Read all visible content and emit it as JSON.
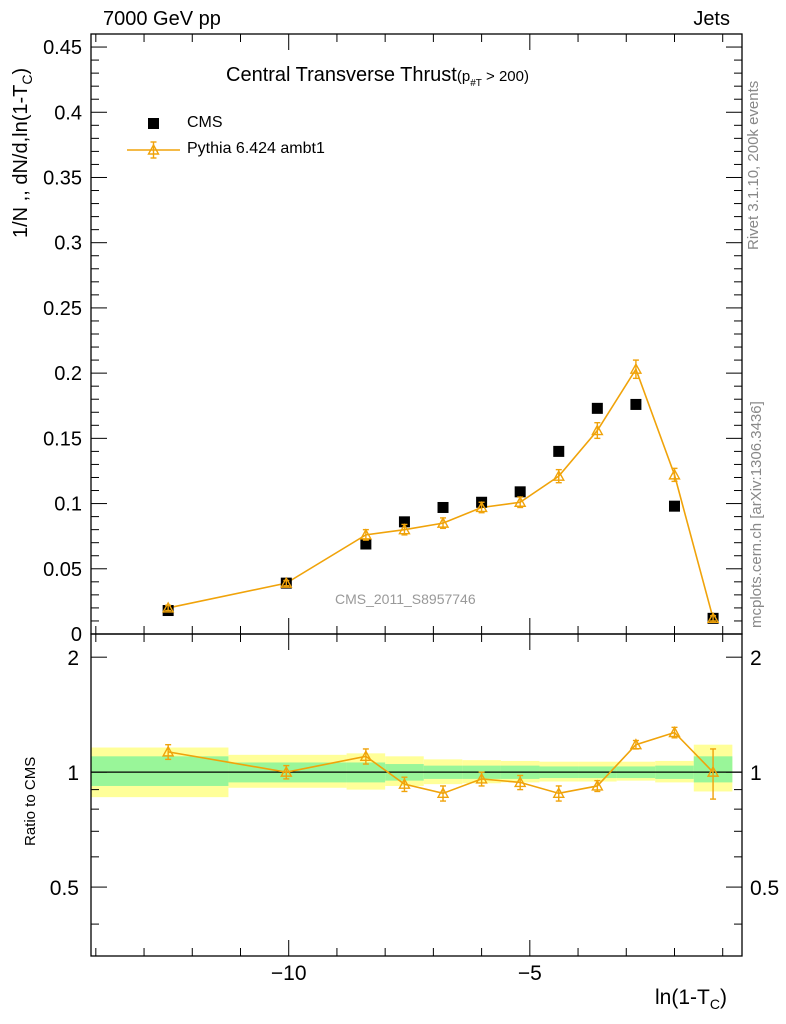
{
  "header": {
    "left": "7000 GeV pp",
    "right": "Jets"
  },
  "chart_data": {
    "type": "line",
    "title": "Central Transverse Thrust",
    "title_suffix": "(p",
    "title_sub": "#T",
    "title_tail": " > 200)",
    "ylabel": "1/N ,, dN/d,ln(1-T",
    "ylabel_sub": "C",
    "ylabel_tail": ")",
    "xlabel": "ln(1-T",
    "xlabel_sub": "C",
    "xlabel_tail": ")",
    "watermark": "CMS_2011_S8957746",
    "side_top": "Rivet 3.1.10,  200k events",
    "side_bottom": "mcplots.cern.ch [arXiv:1306.3436]",
    "ratio_ylabel": "Ratio to CMS",
    "xlim": [
      -14.1,
      -0.6
    ],
    "ylim": [
      0,
      0.46
    ],
    "ratio_ylim": [
      0.33,
      2.3
    ],
    "xticks": [
      -10,
      -5
    ],
    "xtick_labels": [
      "−10",
      "−5"
    ],
    "yticks": [
      0,
      0.05,
      0.1,
      0.15,
      0.2,
      0.25,
      0.3,
      0.35,
      0.4,
      0.45
    ],
    "ytick_labels": [
      "0",
      "0.05",
      "0.1",
      "0.15",
      "0.2",
      "0.25",
      "0.3",
      "0.35",
      "0.4",
      "0.45"
    ],
    "ratio_ticks": [
      0.5,
      1,
      2
    ],
    "ratio_tick_labels": [
      "0.5",
      "1",
      "2"
    ],
    "colors": {
      "mc": "#f0a30a",
      "green": "#99f699",
      "yellow": "#ffff99",
      "data": "#000000"
    },
    "legend": {
      "placement": "top-left",
      "entries": [
        "CMS",
        "Pythia 6.424 ambt1"
      ]
    },
    "series": [
      {
        "name": "CMS",
        "marker": "square",
        "x": [
          -12.5,
          -10.05,
          -8.4,
          -7.6,
          -6.8,
          -6.0,
          -5.2,
          -4.4,
          -3.6,
          -2.8,
          -2.0,
          -1.2
        ],
        "y": [
          0.018,
          0.039,
          0.069,
          0.086,
          0.097,
          0.101,
          0.109,
          0.14,
          0.173,
          0.176,
          0.098,
          0.012
        ]
      },
      {
        "name": "Pythia 6.424 ambt1",
        "marker": "triangle",
        "x": [
          -12.5,
          -10.05,
          -8.4,
          -7.6,
          -6.8,
          -6.0,
          -5.2,
          -4.4,
          -3.6,
          -2.8,
          -2.0,
          -1.2
        ],
        "y": [
          0.02,
          0.039,
          0.076,
          0.08,
          0.085,
          0.097,
          0.101,
          0.121,
          0.156,
          0.203,
          0.122,
          0.012
        ],
        "yerr": [
          0.002,
          0.002,
          0.004,
          0.004,
          0.004,
          0.004,
          0.004,
          0.005,
          0.006,
          0.007,
          0.005,
          0.002
        ]
      }
    ],
    "ratio": {
      "x": [
        -12.5,
        -10.05,
        -8.4,
        -7.6,
        -6.8,
        -6.0,
        -5.2,
        -4.4,
        -3.6,
        -2.8,
        -2.0,
        -1.2
      ],
      "y": [
        1.13,
        1.0,
        1.1,
        0.93,
        0.88,
        0.96,
        0.94,
        0.88,
        0.92,
        1.18,
        1.27,
        1.0
      ],
      "yerr": [
        0.05,
        0.04,
        0.05,
        0.04,
        0.04,
        0.04,
        0.04,
        0.04,
        0.03,
        0.03,
        0.04,
        0.15
      ]
    },
    "bands": [
      {
        "x0": -14.1,
        "x1": -11.25,
        "g": [
          0.92,
          1.1
        ],
        "yl": [
          0.86,
          1.16
        ]
      },
      {
        "x0": -11.25,
        "x1": -8.8,
        "g": [
          0.94,
          1.06
        ],
        "yl": [
          0.91,
          1.11
        ]
      },
      {
        "x0": -8.8,
        "x1": -8.0,
        "g": [
          0.94,
          1.06
        ],
        "yl": [
          0.9,
          1.12
        ]
      },
      {
        "x0": -8.0,
        "x1": -7.2,
        "g": [
          0.95,
          1.05
        ],
        "yl": [
          0.92,
          1.1
        ]
      },
      {
        "x0": -7.2,
        "x1": -6.4,
        "g": [
          0.96,
          1.04
        ],
        "yl": [
          0.93,
          1.08
        ]
      },
      {
        "x0": -6.4,
        "x1": -5.6,
        "g": [
          0.96,
          1.04
        ],
        "yl": [
          0.935,
          1.075
        ]
      },
      {
        "x0": -5.6,
        "x1": -4.8,
        "g": [
          0.96,
          1.04
        ],
        "yl": [
          0.94,
          1.07
        ]
      },
      {
        "x0": -4.8,
        "x1": -4.0,
        "g": [
          0.965,
          1.035
        ],
        "yl": [
          0.945,
          1.065
        ]
      },
      {
        "x0": -4.0,
        "x1": -3.2,
        "g": [
          0.965,
          1.035
        ],
        "yl": [
          0.945,
          1.065
        ]
      },
      {
        "x0": -3.2,
        "x1": -2.4,
        "g": [
          0.965,
          1.035
        ],
        "yl": [
          0.95,
          1.065
        ]
      },
      {
        "x0": -2.4,
        "x1": -1.6,
        "g": [
          0.96,
          1.04
        ],
        "yl": [
          0.94,
          1.07
        ]
      },
      {
        "x0": -1.6,
        "x1": -0.8,
        "g": [
          0.94,
          1.1
        ],
        "yl": [
          0.89,
          1.18
        ]
      }
    ]
  }
}
